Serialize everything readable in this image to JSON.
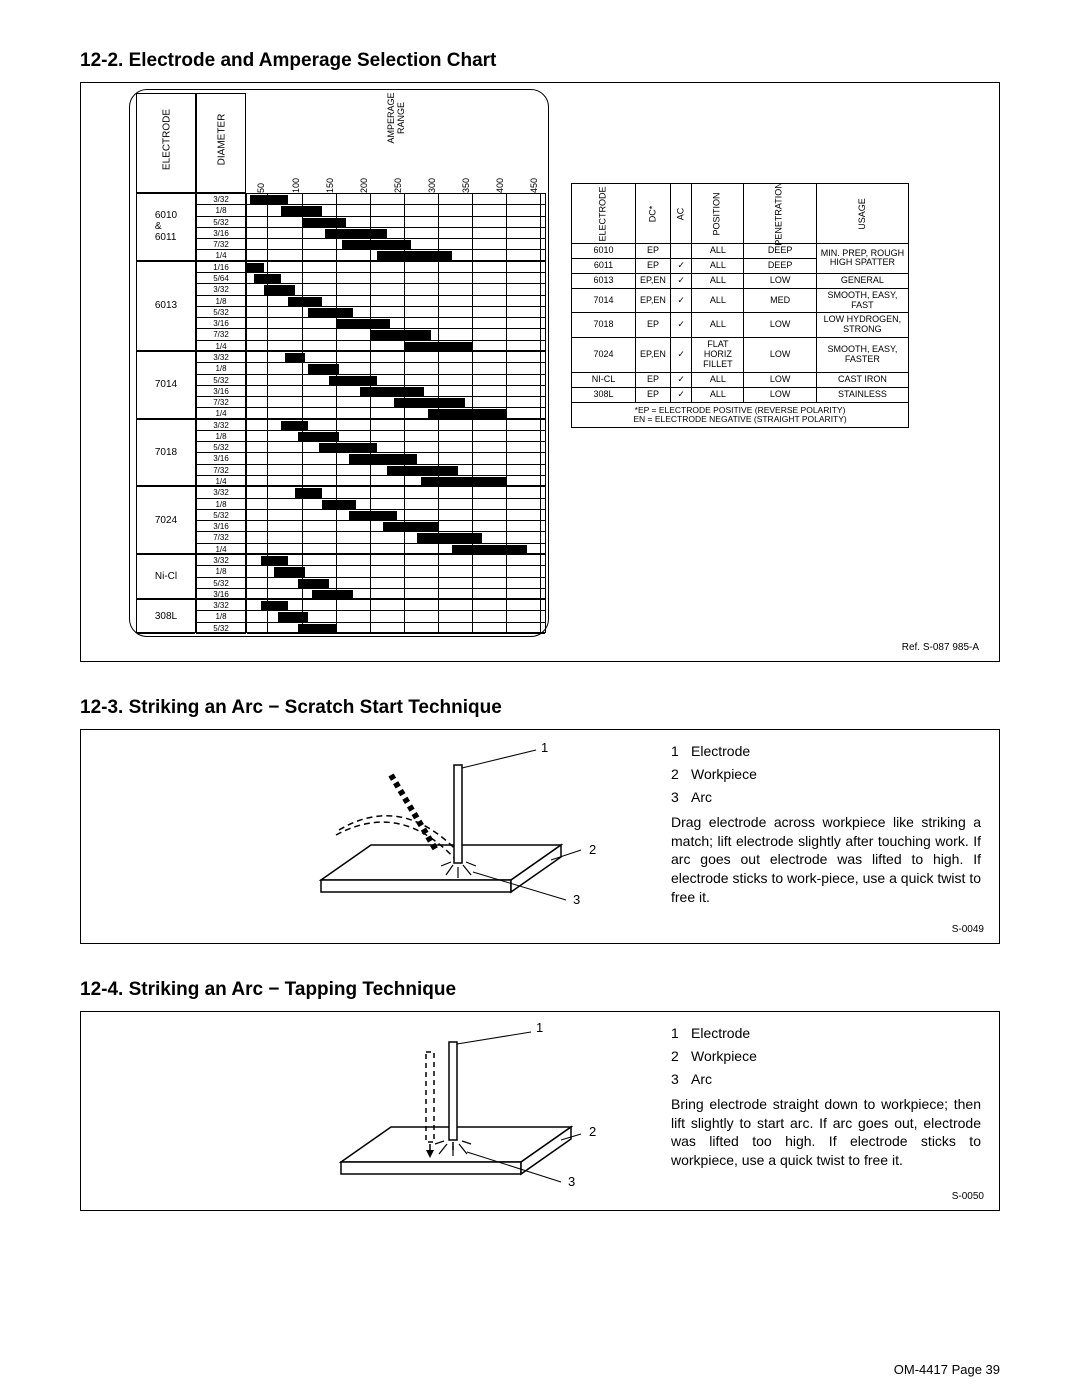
{
  "page": {
    "footer": "OM-4417 Page 39"
  },
  "sec12_2": {
    "title": "12-2.  Electrode and Amperage Selection Chart",
    "ref": "Ref. S-087 985-A",
    "header_labels": {
      "electrode": "ELECTRODE",
      "diameter": "DIAMETER",
      "amperage": "AMPERAGE\nRANGE"
    },
    "ticks": [
      "50",
      "100",
      "150",
      "200",
      "250",
      "300",
      "350",
      "400",
      "450"
    ],
    "groups": [
      {
        "name": "6010\n&\n6011",
        "rows": [
          {
            "d": "3/32",
            "a0": 25,
            "a1": 80
          },
          {
            "d": "1/8",
            "a0": 70,
            "a1": 130
          },
          {
            "d": "5/32",
            "a0": 100,
            "a1": 165
          },
          {
            "d": "3/16",
            "a0": 135,
            "a1": 225
          },
          {
            "d": "7/32",
            "a0": 160,
            "a1": 260
          },
          {
            "d": "1/4",
            "a0": 210,
            "a1": 320
          }
        ]
      },
      {
        "name": "6013",
        "rows": [
          {
            "d": "1/16",
            "a0": 20,
            "a1": 45
          },
          {
            "d": "5/64",
            "a0": 30,
            "a1": 70
          },
          {
            "d": "3/32",
            "a0": 45,
            "a1": 90
          },
          {
            "d": "1/8",
            "a0": 80,
            "a1": 130
          },
          {
            "d": "5/32",
            "a0": 110,
            "a1": 175
          },
          {
            "d": "3/16",
            "a0": 150,
            "a1": 230
          },
          {
            "d": "7/32",
            "a0": 200,
            "a1": 290
          },
          {
            "d": "1/4",
            "a0": 250,
            "a1": 350
          }
        ]
      },
      {
        "name": "7014",
        "rows": [
          {
            "d": "3/32",
            "a0": 75,
            "a1": 105
          },
          {
            "d": "1/8",
            "a0": 110,
            "a1": 155
          },
          {
            "d": "5/32",
            "a0": 140,
            "a1": 210
          },
          {
            "d": "3/16",
            "a0": 185,
            "a1": 280
          },
          {
            "d": "7/32",
            "a0": 235,
            "a1": 340
          },
          {
            "d": "1/4",
            "a0": 285,
            "a1": 400
          }
        ]
      },
      {
        "name": "7018",
        "rows": [
          {
            "d": "3/32",
            "a0": 70,
            "a1": 110
          },
          {
            "d": "1/8",
            "a0": 95,
            "a1": 155
          },
          {
            "d": "5/32",
            "a0": 125,
            "a1": 210
          },
          {
            "d": "3/16",
            "a0": 170,
            "a1": 270
          },
          {
            "d": "7/32",
            "a0": 225,
            "a1": 330
          },
          {
            "d": "1/4",
            "a0": 275,
            "a1": 400
          }
        ]
      },
      {
        "name": "7024",
        "rows": [
          {
            "d": "3/32",
            "a0": 90,
            "a1": 130
          },
          {
            "d": "1/8",
            "a0": 130,
            "a1": 180
          },
          {
            "d": "5/32",
            "a0": 170,
            "a1": 240
          },
          {
            "d": "3/16",
            "a0": 220,
            "a1": 300
          },
          {
            "d": "7/32",
            "a0": 270,
            "a1": 365
          },
          {
            "d": "1/4",
            "a0": 320,
            "a1": 430
          }
        ]
      },
      {
        "name": "Ni-Cl",
        "rows": [
          {
            "d": "3/32",
            "a0": 40,
            "a1": 80
          },
          {
            "d": "1/8",
            "a0": 60,
            "a1": 105
          },
          {
            "d": "5/32",
            "a0": 95,
            "a1": 140
          },
          {
            "d": "3/16",
            "a0": 115,
            "a1": 175
          }
        ]
      },
      {
        "name": "308L",
        "rows": [
          {
            "d": "3/32",
            "a0": 40,
            "a1": 80
          },
          {
            "d": "1/8",
            "a0": 65,
            "a1": 110
          },
          {
            "d": "5/32",
            "a0": 95,
            "a1": 150
          }
        ]
      }
    ],
    "usage_headers": [
      "ELECTRODE",
      "DC*",
      "AC",
      "POSITION",
      "PENETRATION",
      "USAGE"
    ],
    "usage_rows": [
      [
        "6010",
        "EP",
        "",
        "ALL",
        "DEEP",
        "MIN. PREP, ROUGH<br>HIGH SPATTER"
      ],
      [
        "6011",
        "EP",
        "✓",
        "ALL",
        "DEEP",
        ""
      ],
      [
        "6013",
        "EP,EN",
        "✓",
        "ALL",
        "LOW",
        "GENERAL"
      ],
      [
        "7014",
        "EP,EN",
        "✓",
        "ALL",
        "MED",
        "SMOOTH, EASY,<br>FAST"
      ],
      [
        "7018",
        "EP",
        "✓",
        "ALL",
        "LOW",
        "LOW HYDROGEN,<br>STRONG"
      ],
      [
        "7024",
        "EP,EN",
        "✓",
        "FLAT<br>HORIZ<br>FILLET",
        "LOW",
        "SMOOTH, EASY,<br>FASTER"
      ],
      [
        "NI-CL",
        "EP",
        "✓",
        "ALL",
        "LOW",
        "CAST IRON"
      ],
      [
        "308L",
        "EP",
        "✓",
        "ALL",
        "LOW",
        "STAINLESS"
      ]
    ],
    "usage_footnote": "*EP = ELECTRODE POSITIVE (REVERSE POLARITY)<br>EN = ELECTRODE NEGATIVE (STRAIGHT POLARITY)"
  },
  "sec12_3": {
    "title": "12-3.  Striking an Arc − Scratch Start Technique",
    "legend": [
      [
        "1",
        "Electrode"
      ],
      [
        "2",
        "Workpiece"
      ],
      [
        "3",
        "Arc"
      ]
    ],
    "body": "Drag electrode across workpiece like striking a match; lift electrode slightly after touching work. If arc goes out electrode was lifted to high. If electrode sticks to work-piece, use a quick twist to free it.",
    "ref": "S-0049"
  },
  "sec12_4": {
    "title": "12-4.  Striking an Arc − Tapping Technique",
    "legend": [
      [
        "1",
        "Electrode"
      ],
      [
        "2",
        "Workpiece"
      ],
      [
        "3",
        "Arc"
      ]
    ],
    "body": "Bring electrode straight down to workpiece; then lift slightly to start arc. If arc goes out, electrode was lifted too high. If electrode sticks to workpiece, use a quick twist to free it.",
    "ref": "S-0050"
  }
}
